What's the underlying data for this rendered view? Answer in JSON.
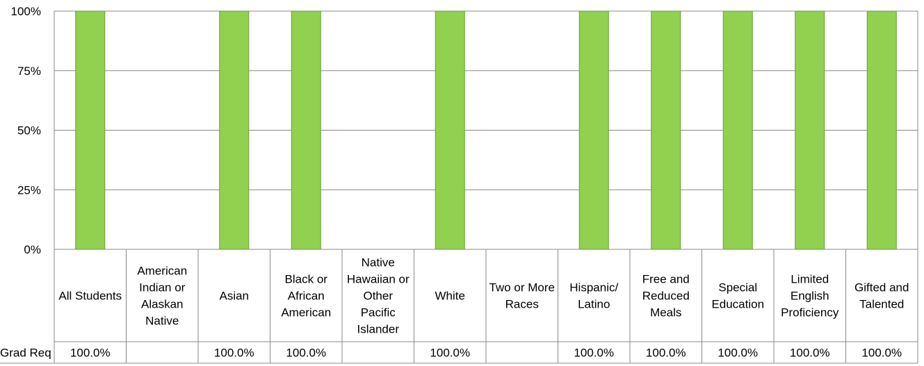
{
  "chart_data": {
    "type": "bar",
    "categories": [
      "All Students",
      "American Indian or Alaskan Native",
      "Asian",
      "Black or African American",
      "Native Hawaiian or Other Pacific Islander",
      "White",
      "Two or More Races",
      "Hispanic/ Latino",
      "Free and Reduced Meals",
      "Special Education",
      "Limited English Proficiency",
      "Gifted and Talented"
    ],
    "series": [
      {
        "name": "Grad Req",
        "color": "#92d050",
        "values": [
          100,
          null,
          100,
          100,
          null,
          100,
          null,
          100,
          100,
          100,
          100,
          100
        ],
        "labels": [
          "100.0%",
          "",
          "100.0%",
          "100.0%",
          "",
          "100.0%",
          "",
          "100.0%",
          "100.0%",
          "100.0%",
          "100.0%",
          "100.0%"
        ]
      }
    ],
    "yticks": [
      "0%",
      "25%",
      "50%",
      "75%",
      "100%"
    ],
    "ylim": [
      0,
      100
    ],
    "grid": true,
    "legend": "data-table-row"
  }
}
